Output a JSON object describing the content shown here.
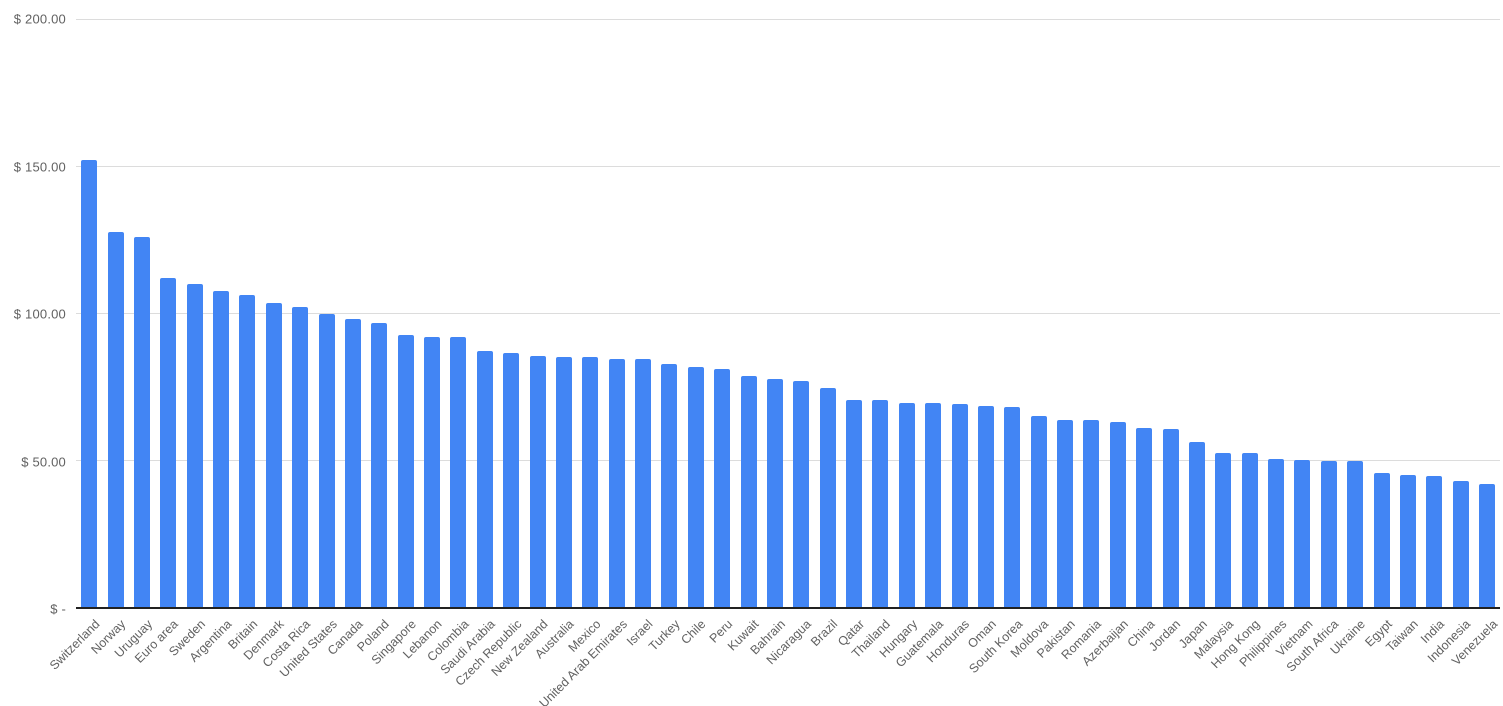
{
  "chart_data": {
    "type": "bar",
    "title": "",
    "xlabel": "",
    "ylabel": "",
    "grid": true,
    "legend_position": "none",
    "ylim": [
      0,
      200
    ],
    "bar_color": "#4285f4",
    "gridline_color": "#dcdcdc",
    "axis_line_color": "#212121",
    "tick_label_color": "#616161",
    "yticks": [
      {
        "value": 0,
        "label": "$ -"
      },
      {
        "value": 50,
        "label": "$ 50.00"
      },
      {
        "value": 100,
        "label": "$ 100.00"
      },
      {
        "value": 150,
        "label": "$ 150.00"
      },
      {
        "value": 200,
        "label": "$ 200.00"
      }
    ],
    "categories": [
      "Switzerland",
      "Norway",
      "Uruguay",
      "Euro area",
      "Sweden",
      "Argentina",
      "Britain",
      "Denmark",
      "Costa Rica",
      "United States",
      "Canada",
      "Poland",
      "Singapore",
      "Lebanon",
      "Colombia",
      "Saudi Arabia",
      "Czech Republic",
      "New Zealand",
      "Australia",
      "Mexico",
      "United Arab Emirates",
      "Israel",
      "Turkey",
      "Chile",
      "Peru",
      "Kuwait",
      "Bahrain",
      "Nicaragua",
      "Brazil",
      "Qatar",
      "Thailand",
      "Hungary",
      "Guatemala",
      "Honduras",
      "Oman",
      "South Korea",
      "Moldova",
      "Pakistan",
      "Romania",
      "Azerbaijan",
      "China",
      "Jordan",
      "Japan",
      "Malaysia",
      "Hong Kong",
      "Philippines",
      "Vietnam",
      "South Africa",
      "Ukraine",
      "Egypt",
      "Taiwan",
      "India",
      "Indonesia",
      "Venezuela"
    ],
    "values": [
      152,
      127.5,
      126,
      112,
      110,
      107.5,
      106,
      103.5,
      102,
      99.5,
      98,
      96.5,
      92.5,
      92,
      92,
      87,
      86.5,
      85.5,
      85,
      85,
      84.5,
      84.5,
      82.5,
      81.5,
      81,
      78.5,
      77.5,
      77,
      74.5,
      70.5,
      70.5,
      69.5,
      69.5,
      69,
      68.5,
      68,
      65,
      63.5,
      63.5,
      63,
      61,
      60.5,
      56,
      52.5,
      52.5,
      50.5,
      50,
      49.5,
      49.5,
      45.5,
      45,
      44.5,
      43,
      42
    ]
  }
}
